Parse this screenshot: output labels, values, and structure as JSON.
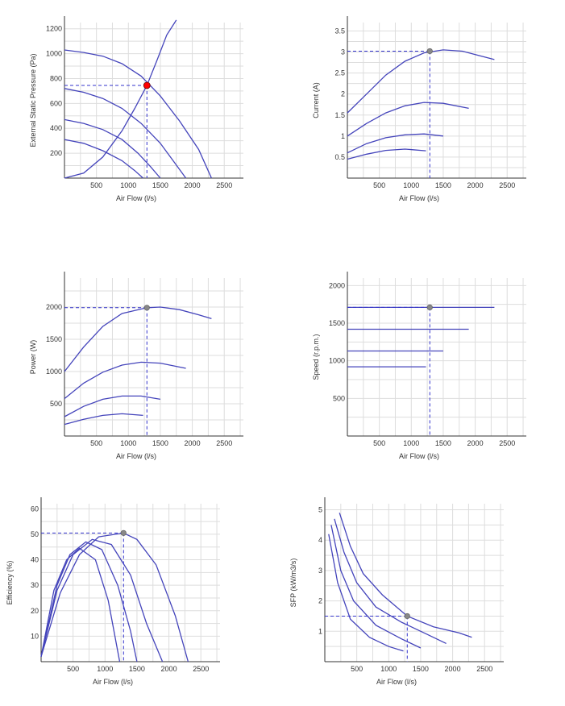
{
  "colors": {
    "curve": "#4444bb",
    "grid": "#dddddd",
    "axis": "#333333",
    "operating_point": "#888888",
    "operating_point_highlight": "#ff0000"
  },
  "chart_data": [
    {
      "id": "pressure",
      "type": "line",
      "xlabel": "Air Flow (l/s)",
      "ylabel": "External Static Pressure (Pa)",
      "xlim": [
        0,
        2800
      ],
      "ylim": [
        0,
        1250
      ],
      "xticks": [
        500,
        1000,
        1500,
        2000,
        2500
      ],
      "yticks": [
        200,
        400,
        600,
        800,
        1000,
        1200
      ],
      "series": [
        {
          "values": [
            [
              0,
              1030
            ],
            [
              300,
              1010
            ],
            [
              600,
              980
            ],
            [
              900,
              920
            ],
            [
              1200,
              820
            ],
            [
              1500,
              660
            ],
            [
              1800,
              460
            ],
            [
              2100,
              230
            ],
            [
              2300,
              0
            ]
          ]
        },
        {
          "values": [
            [
              0,
              720
            ],
            [
              300,
              690
            ],
            [
              600,
              640
            ],
            [
              900,
              560
            ],
            [
              1200,
              440
            ],
            [
              1500,
              280
            ],
            [
              1700,
              140
            ],
            [
              1900,
              0
            ]
          ]
        },
        {
          "values": [
            [
              0,
              470
            ],
            [
              300,
              440
            ],
            [
              600,
              390
            ],
            [
              900,
              310
            ],
            [
              1150,
              200
            ],
            [
              1350,
              90
            ],
            [
              1500,
              0
            ]
          ]
        },
        {
          "values": [
            [
              0,
              310
            ],
            [
              300,
              280
            ],
            [
              600,
              220
            ],
            [
              900,
              140
            ],
            [
              1100,
              60
            ],
            [
              1230,
              0
            ]
          ]
        },
        {
          "values": [
            [
              0,
              0
            ],
            [
              300,
              40
            ],
            [
              600,
              170
            ],
            [
              900,
              380
            ],
            [
              1100,
              560
            ],
            [
              1290,
              745
            ],
            [
              1450,
              950
            ],
            [
              1600,
              1150
            ],
            [
              1750,
              1270
            ]
          ]
        }
      ],
      "operating_point": {
        "x": 1290,
        "y": 745
      },
      "grid": true
    },
    {
      "id": "current",
      "type": "line",
      "xlabel": "Air Flow (l/s)",
      "ylabel": "Current (A)",
      "xlim": [
        0,
        2800
      ],
      "ylim": [
        0,
        3.7
      ],
      "xticks": [
        500,
        1000,
        1500,
        2000,
        2500
      ],
      "yticks": [
        0.5,
        1,
        1.5,
        2,
        2.5,
        3,
        3.5
      ],
      "series": [
        {
          "values": [
            [
              0,
              1.55
            ],
            [
              300,
              2.0
            ],
            [
              600,
              2.45
            ],
            [
              900,
              2.78
            ],
            [
              1200,
              2.98
            ],
            [
              1500,
              3.05
            ],
            [
              1800,
              3.02
            ],
            [
              2100,
              2.9
            ],
            [
              2300,
              2.82
            ]
          ]
        },
        {
          "values": [
            [
              0,
              1.0
            ],
            [
              300,
              1.3
            ],
            [
              600,
              1.55
            ],
            [
              900,
              1.72
            ],
            [
              1200,
              1.8
            ],
            [
              1500,
              1.78
            ],
            [
              1900,
              1.66
            ]
          ]
        },
        {
          "values": [
            [
              0,
              0.6
            ],
            [
              300,
              0.82
            ],
            [
              600,
              0.96
            ],
            [
              900,
              1.03
            ],
            [
              1200,
              1.05
            ],
            [
              1500,
              1.0
            ]
          ]
        },
        {
          "values": [
            [
              0,
              0.45
            ],
            [
              300,
              0.57
            ],
            [
              600,
              0.66
            ],
            [
              900,
              0.69
            ],
            [
              1230,
              0.65
            ]
          ]
        }
      ],
      "operating_point": {
        "x": 1290,
        "y": 3.02
      },
      "grid": true
    },
    {
      "id": "power",
      "type": "line",
      "xlabel": "Air Flow (l/s)",
      "ylabel": "Power (W)",
      "xlim": [
        0,
        2800
      ],
      "ylim": [
        0,
        2450
      ],
      "xticks": [
        500,
        1000,
        1500,
        2000,
        2500
      ],
      "yticks": [
        500,
        1000,
        1500,
        2000
      ],
      "series": [
        {
          "values": [
            [
              0,
              1000
            ],
            [
              300,
              1380
            ],
            [
              600,
              1700
            ],
            [
              900,
              1900
            ],
            [
              1290,
              1990
            ],
            [
              1500,
              2000
            ],
            [
              1800,
              1960
            ],
            [
              2100,
              1880
            ],
            [
              2300,
              1820
            ]
          ]
        },
        {
          "values": [
            [
              0,
              580
            ],
            [
              300,
              820
            ],
            [
              600,
              990
            ],
            [
              900,
              1100
            ],
            [
              1200,
              1145
            ],
            [
              1500,
              1130
            ],
            [
              1900,
              1050
            ]
          ]
        },
        {
          "values": [
            [
              0,
              300
            ],
            [
              300,
              460
            ],
            [
              600,
              570
            ],
            [
              900,
              620
            ],
            [
              1200,
              620
            ],
            [
              1500,
              570
            ]
          ]
        },
        {
          "values": [
            [
              0,
              180
            ],
            [
              300,
              260
            ],
            [
              600,
              320
            ],
            [
              900,
              345
            ],
            [
              1230,
              320
            ]
          ]
        }
      ],
      "operating_point": {
        "x": 1290,
        "y": 1990
      },
      "grid": true
    },
    {
      "id": "speed",
      "type": "line",
      "xlabel": "Air Flow (l/s)",
      "ylabel": "Speed (r.p.m.)",
      "xlim": [
        0,
        2800
      ],
      "ylim": [
        0,
        2100
      ],
      "xticks": [
        500,
        1000,
        1500,
        2000,
        2500
      ],
      "yticks": [
        500,
        1000,
        1500,
        2000
      ],
      "series": [
        {
          "values": [
            [
              0,
              1710
            ],
            [
              2300,
              1710
            ]
          ]
        },
        {
          "values": [
            [
              0,
              1420
            ],
            [
              1900,
              1420
            ]
          ]
        },
        {
          "values": [
            [
              0,
              1130
            ],
            [
              1500,
              1130
            ]
          ]
        },
        {
          "values": [
            [
              0,
              920
            ],
            [
              1230,
              920
            ]
          ]
        }
      ],
      "operating_point": {
        "x": 1290,
        "y": 1710
      },
      "grid": true
    },
    {
      "id": "efficiency",
      "type": "line",
      "xlabel": "Air Flow (l/s)",
      "ylabel": "Efficiency (%)",
      "xlim": [
        0,
        2800
      ],
      "ylim": [
        0,
        62
      ],
      "xticks": [
        500,
        1000,
        1500,
        2000,
        2500
      ],
      "yticks": [
        10,
        20,
        30,
        40,
        50,
        60
      ],
      "series": [
        {
          "values": [
            [
              0,
              2
            ],
            [
              300,
              27
            ],
            [
              600,
              42
            ],
            [
              900,
              49
            ],
            [
              1290,
              50.5
            ],
            [
              1500,
              48
            ],
            [
              1800,
              38
            ],
            [
              2100,
              18
            ],
            [
              2300,
              0
            ]
          ]
        },
        {
          "values": [
            [
              0,
              2
            ],
            [
              250,
              28
            ],
            [
              500,
              42
            ],
            [
              800,
              48
            ],
            [
              1100,
              46
            ],
            [
              1400,
              34
            ],
            [
              1650,
              15
            ],
            [
              1900,
              0
            ]
          ]
        },
        {
          "values": [
            [
              0,
              2
            ],
            [
              250,
              30
            ],
            [
              450,
              42
            ],
            [
              700,
              47
            ],
            [
              950,
              44
            ],
            [
              1200,
              30
            ],
            [
              1400,
              12
            ],
            [
              1500,
              0
            ]
          ]
        },
        {
          "values": [
            [
              0,
              2
            ],
            [
              200,
              28
            ],
            [
              400,
              40
            ],
            [
              600,
              44.5
            ],
            [
              850,
              40
            ],
            [
              1050,
              24
            ],
            [
              1230,
              0
            ]
          ]
        }
      ],
      "operating_point": {
        "x": 1290,
        "y": 50.5
      },
      "grid": true
    },
    {
      "id": "sfp",
      "type": "line",
      "xlabel": "Air Flow (l/s)",
      "ylabel": "SFP (kW/m3/s)",
      "xlim": [
        0,
        2800
      ],
      "ylim": [
        0,
        5.2
      ],
      "xticks": [
        500,
        1000,
        1500,
        2000,
        2500
      ],
      "yticks": [
        1,
        2,
        3,
        4,
        5
      ],
      "series": [
        {
          "values": [
            [
              230,
              4.9
            ],
            [
              400,
              3.8
            ],
            [
              600,
              2.9
            ],
            [
              900,
              2.2
            ],
            [
              1290,
              1.5
            ],
            [
              1700,
              1.15
            ],
            [
              2100,
              0.95
            ],
            [
              2300,
              0.8
            ]
          ]
        },
        {
          "values": [
            [
              150,
              4.7
            ],
            [
              300,
              3.6
            ],
            [
              500,
              2.6
            ],
            [
              800,
              1.8
            ],
            [
              1200,
              1.3
            ],
            [
              1600,
              0.9
            ],
            [
              1900,
              0.6
            ]
          ]
        },
        {
          "values": [
            [
              100,
              4.5
            ],
            [
              250,
              3.0
            ],
            [
              450,
              2.0
            ],
            [
              800,
              1.2
            ],
            [
              1200,
              0.75
            ],
            [
              1500,
              0.45
            ]
          ]
        },
        {
          "values": [
            [
              60,
              4.2
            ],
            [
              200,
              2.6
            ],
            [
              400,
              1.4
            ],
            [
              700,
              0.8
            ],
            [
              1000,
              0.5
            ],
            [
              1230,
              0.35
            ]
          ]
        }
      ],
      "operating_point": {
        "x": 1290,
        "y": 1.5
      },
      "grid": true
    }
  ]
}
